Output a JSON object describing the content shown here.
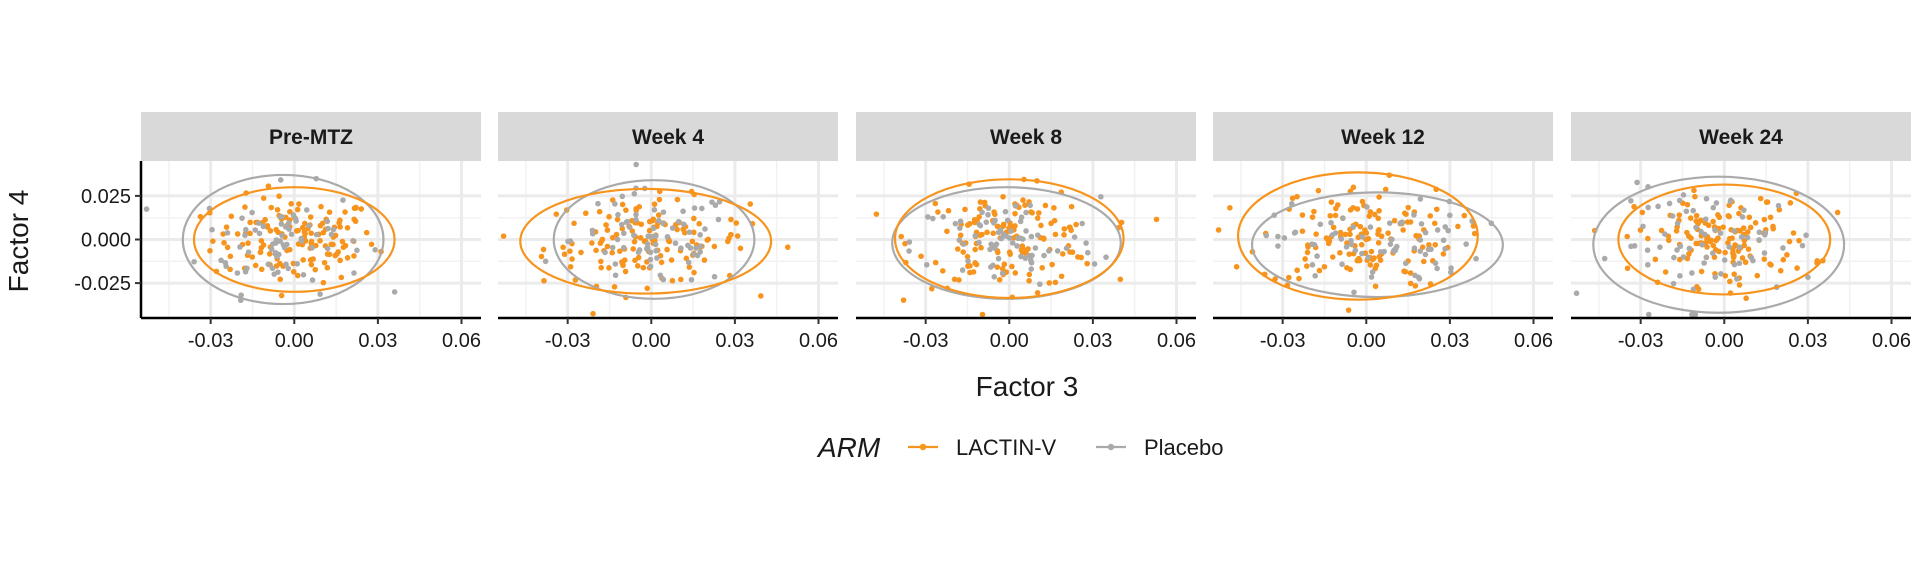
{
  "chart_data": {
    "type": "scatter",
    "facets": [
      "Pre-MTZ",
      "Week 4",
      "Week 8",
      "Week 12",
      "Week 24"
    ],
    "xlabel": "Factor 3",
    "ylabel": "Factor 4",
    "xlim": [
      -0.055,
      0.067
    ],
    "ylim": [
      -0.045,
      0.045
    ],
    "xticks": [
      -0.03,
      0.0,
      0.03,
      0.06
    ],
    "xtick_labels": [
      "-0.03",
      "0.00",
      "0.03",
      "0.06"
    ],
    "yticks": [
      0.025,
      0.0,
      -0.025
    ],
    "ytick_labels": [
      "0.025",
      "0.000",
      "-0.025"
    ],
    "grid": true,
    "legend": {
      "title": "ARM",
      "position": "bottom",
      "entries": [
        {
          "label": "LACTIN-V",
          "color": "#F7941D"
        },
        {
          "label": "Placebo",
          "color": "#AAAAAA"
        }
      ]
    },
    "series": [
      {
        "name": "LACTIN-V",
        "color": "#F7941D",
        "n_points_per_facet": 140
      },
      {
        "name": "Placebo",
        "color": "#AAAAAA",
        "n_points_per_facet": 75
      }
    ],
    "ellipses": [
      {
        "facet": "Pre-MTZ",
        "series": "LACTIN-V",
        "cx": 0.0,
        "cy": 0.0,
        "rx": 0.036,
        "ry": 0.03
      },
      {
        "facet": "Pre-MTZ",
        "series": "Placebo",
        "cx": -0.004,
        "cy": 0.0,
        "rx": 0.036,
        "ry": 0.037
      },
      {
        "facet": "Week 4",
        "series": "LACTIN-V",
        "cx": -0.002,
        "cy": -0.001,
        "rx": 0.045,
        "ry": 0.03
      },
      {
        "facet": "Week 4",
        "series": "Placebo",
        "cx": 0.001,
        "cy": 0.0,
        "rx": 0.036,
        "ry": 0.034
      },
      {
        "facet": "Week 8",
        "series": "LACTIN-V",
        "cx": 0.0,
        "cy": 0.0005,
        "rx": 0.041,
        "ry": 0.034
      },
      {
        "facet": "Week 8",
        "series": "Placebo",
        "cx": -0.001,
        "cy": -0.002,
        "rx": 0.041,
        "ry": 0.032
      },
      {
        "facet": "Week 12",
        "series": "LACTIN-V",
        "cx": -0.003,
        "cy": 0.002,
        "rx": 0.043,
        "ry": 0.0365
      },
      {
        "facet": "Week 12",
        "series": "Placebo",
        "cx": 0.004,
        "cy": -0.003,
        "rx": 0.045,
        "ry": 0.03
      },
      {
        "facet": "Week 24",
        "series": "LACTIN-V",
        "cx": 0.0,
        "cy": 0.0,
        "rx": 0.038,
        "ry": 0.0315
      },
      {
        "facet": "Week 24",
        "series": "Placebo",
        "cx": -0.002,
        "cy": -0.003,
        "rx": 0.045,
        "ry": 0.039
      }
    ]
  }
}
